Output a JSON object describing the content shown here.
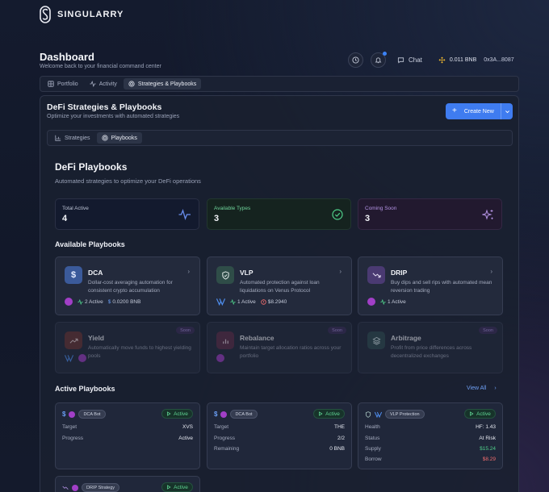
{
  "app": {
    "name": "SINGULARRY"
  },
  "header": {
    "title": "Dashboard",
    "subtitle": "Welcome back to your financial command center",
    "chat_label": "Chat",
    "balance": "0.011 BNB",
    "address": "0x3A...8087"
  },
  "main_tabs": [
    {
      "label": "Portfolio",
      "icon": "portfolio-icon",
      "active": false
    },
    {
      "label": "Activity",
      "icon": "activity-icon",
      "active": false
    },
    {
      "label": "Strategies & Playbooks",
      "icon": "target-icon",
      "active": true
    }
  ],
  "panel": {
    "title": "DeFi Strategies & Playbooks",
    "subtitle": "Optimize your investments with automated strategies",
    "create_label": "Create New",
    "sub_tabs": [
      {
        "label": "Strategies",
        "icon": "chart-icon",
        "active": false
      },
      {
        "label": "Playbooks",
        "icon": "target-icon",
        "active": true
      }
    ]
  },
  "playbooks": {
    "title": "DeFi Playbooks",
    "subtitle": "Automated strategies to optimize your DeFi operations",
    "stats": [
      {
        "label": "Total Active",
        "value": "4",
        "icon": "pulse-icon",
        "color": "#6a8ff0"
      },
      {
        "label": "Available Types",
        "value": "3",
        "icon": "check-circle-icon",
        "color": "#4fcf8a"
      },
      {
        "label": "Coming Soon",
        "value": "3",
        "icon": "sparkles-icon",
        "color": "#b392e3"
      }
    ],
    "available_heading": "Available Playbooks",
    "available": [
      {
        "name": "DCA",
        "desc": "Dollar-cost averaging automation for consistent crypto accumulation",
        "active": "2 Active",
        "amount": "0.0200 BNB",
        "icon": "dollar-icon",
        "color": "#3b5a9a"
      },
      {
        "name": "VLP",
        "desc": "Automated protection against loan liquidations on Venus Protocol",
        "active": "1 Active",
        "amount": "$8.2940",
        "icon": "shield-icon",
        "color": "#2f5a4a"
      },
      {
        "name": "DRIP",
        "desc": "Buy dips and sell rips with automated mean reversion trading",
        "active": "1 Active",
        "icon": "trend-down-icon",
        "color": "#4f3a78"
      }
    ],
    "coming_soon": [
      {
        "name": "Yield",
        "desc": "Automatically move funds to highest yielding pools",
        "tag": "Soon",
        "icon": "trend-up-icon",
        "color": "#7a3a3a"
      },
      {
        "name": "Rebalance",
        "desc": "Maintain target allocation ratios across your portfolio",
        "tag": "Soon",
        "icon": "bar-chart-icon",
        "color": "#6a3452"
      },
      {
        "name": "Arbitrage",
        "desc": "Profit from price differences across decentralized exchanges",
        "tag": "Soon",
        "icon": "layers-icon",
        "color": "#2f5a5a"
      }
    ],
    "active_heading": "Active Playbooks",
    "view_all": "View All",
    "status_label": "Active",
    "active_cards": [
      {
        "badge": "DCA Bot",
        "rows": [
          {
            "k": "Target",
            "v": "XVS"
          },
          {
            "k": "Progress",
            "v": "Active"
          }
        ]
      },
      {
        "badge": "DCA Bot",
        "rows": [
          {
            "k": "Target",
            "v": "THE"
          },
          {
            "k": "Progress",
            "v": "2/2"
          },
          {
            "k": "Remaining",
            "v": "0 BNB"
          }
        ]
      },
      {
        "badge": "VLP Protection",
        "rows": [
          {
            "k": "Health",
            "v": "HF: 1.43"
          },
          {
            "k": "Status",
            "v": "At Risk"
          },
          {
            "k": "Supply",
            "v": "$15.24"
          },
          {
            "k": "Borrow",
            "v": "$8.29"
          }
        ]
      },
      {
        "badge": "DRIP Strategy",
        "rows": []
      }
    ]
  }
}
